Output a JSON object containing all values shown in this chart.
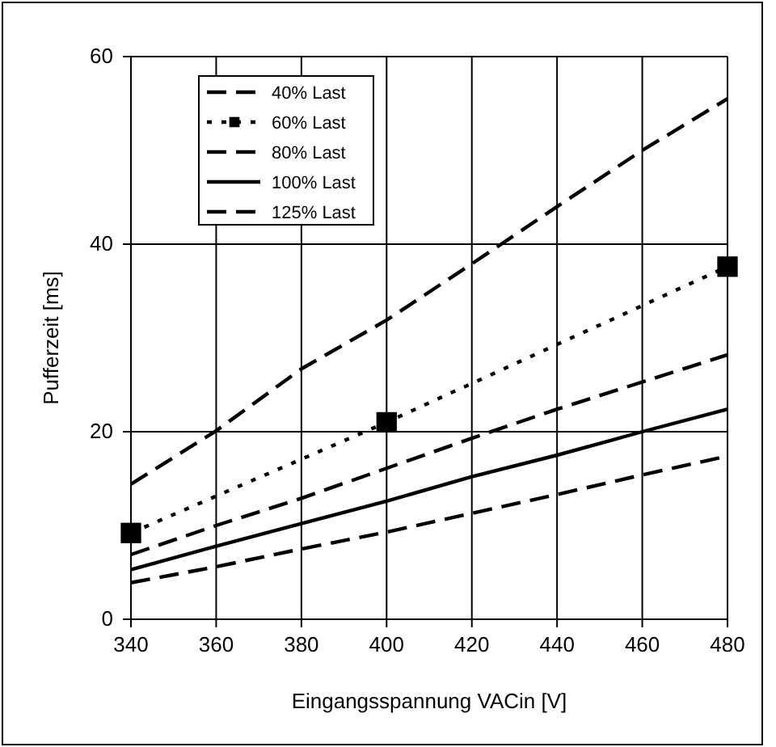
{
  "chart_data": {
    "type": "line",
    "xlabel": "Eingangsspannung VACin [V]",
    "ylabel": "Pufferzeit [ms]",
    "xlim": [
      340,
      480
    ],
    "xticks": [
      340,
      360,
      380,
      400,
      420,
      440,
      460,
      480
    ],
    "ylim": [
      0,
      60
    ],
    "yticks": [
      0,
      20,
      40,
      60
    ],
    "grid": true,
    "legend": "top left",
    "x": [
      340,
      360,
      380,
      400,
      420,
      440,
      460,
      480
    ],
    "series": [
      {
        "name": "40% Last",
        "color": "#000000",
        "line_style": "dashed",
        "marker": "none",
        "values": [
          14.4,
          20.1,
          26.7,
          31.9,
          37.9,
          44,
          50,
          55.5
        ]
      },
      {
        "name": "60% Last",
        "color": "#000000",
        "line_style": "dotted",
        "marker": "square",
        "x": [
          340,
          400,
          480
        ],
        "values": [
          9.2,
          21,
          37.6
        ]
      },
      {
        "name": "80% Last",
        "color": "#000000",
        "line_style": "dashed",
        "marker": "none",
        "values": [
          6.9,
          10,
          12.9,
          16.1,
          19.3,
          22.4,
          25.3,
          28.2
        ]
      },
      {
        "name": "100% Last",
        "color": "#000000",
        "line_style": "solid",
        "marker": "none",
        "values": [
          5.3,
          7.8,
          10.2,
          12.6,
          15.2,
          17.5,
          20,
          22.4
        ]
      },
      {
        "name": "125% Last",
        "color": "#000000",
        "line_style": "dashed",
        "marker": "none",
        "values": [
          3.9,
          5.6,
          7.5,
          9.3,
          11.3,
          13.3,
          15.4,
          17.4
        ]
      }
    ]
  }
}
